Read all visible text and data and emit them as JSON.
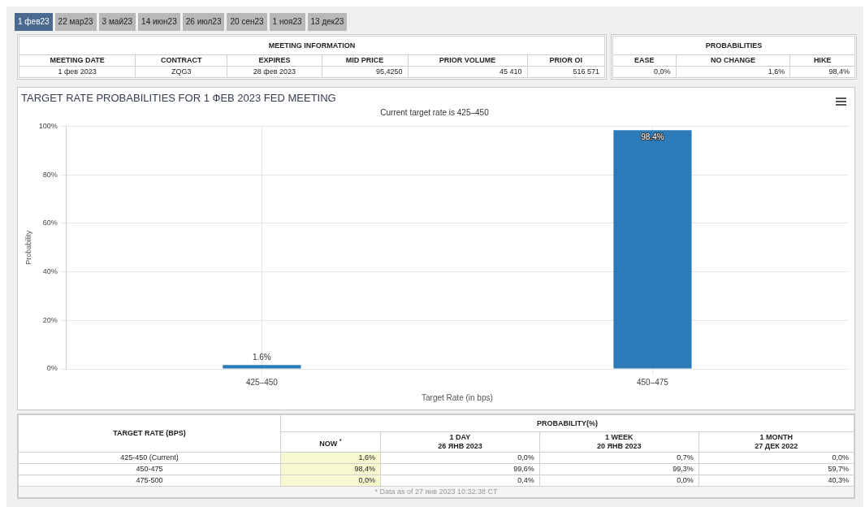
{
  "chart_data": [
    {
      "type": "other",
      "annotations": [
        "1 фев23",
        "22 мар23",
        "3 май23",
        "14 июн23",
        "26 июл23",
        "20 сен23",
        "1 ноя23",
        "13 дек23"
      ]
    },
    {
      "type": "other",
      "title": "MEETING INFORMATION",
      "annotations": [
        "MEETING DATE",
        "CONTRACT",
        "EXPIRES",
        "MID PRICE",
        "PRIOR VOLUME",
        "PRIOR OI",
        "1 фев 2023",
        "ZQG3",
        "28 фев 2023",
        "95,4250",
        "45 410",
        "516 571"
      ]
    },
    {
      "type": "other",
      "title": "PROBABILITIES",
      "annotations": [
        "EASE",
        "NO CHANGE",
        "HIKE",
        "0,0%",
        "1,6%",
        "98,4%"
      ]
    },
    {
      "type": "bar",
      "title": "TARGET RATE PROBABILITIES FOR 1 ФЕВ 2023 FED MEETING",
      "subtitle": "Current target rate is 425–450",
      "xlabel": "Target Rate (in bps)",
      "ylabel": "Probability",
      "categories": [
        "425–450",
        "450–475"
      ],
      "values": [
        1.6,
        98.4
      ],
      "value_labels": [
        "1.6%",
        "98.4%"
      ],
      "color": "#2b7bb9",
      "ylim": [
        0,
        100
      ],
      "yticks": [
        {
          "value": 0,
          "label": "0%"
        },
        {
          "value": 20,
          "label": "20%"
        },
        {
          "value": 40,
          "label": "40%"
        },
        {
          "value": 60,
          "label": "60%"
        },
        {
          "value": 80,
          "label": "80%"
        },
        {
          "value": 100,
          "label": "100%"
        }
      ],
      "grid": true,
      "legend": false
    },
    {
      "type": "other",
      "title": "PROBABILITY(%)",
      "annotations": [
        "TARGET RATE (BPS)",
        "NOW $^{*}$",
        "1 DAY\n26 ЯНВ 2023",
        "1 WEEK\n20 ЯНВ 2023",
        "1 MONTH\n27 ДЕК 2022",
        "425-450 (Current)",
        "1,6%",
        "0,0%",
        "0,7%",
        "0,0%",
        "450-475",
        "98,4%",
        "99,6%",
        "99,3%",
        "59,7%",
        "475-500",
        "0,0%",
        "0,4%",
        "0,0%",
        "40,3%",
        "* Data as of 27 янв 2023 10:32:38 CT"
      ]
    }
  ]
}
